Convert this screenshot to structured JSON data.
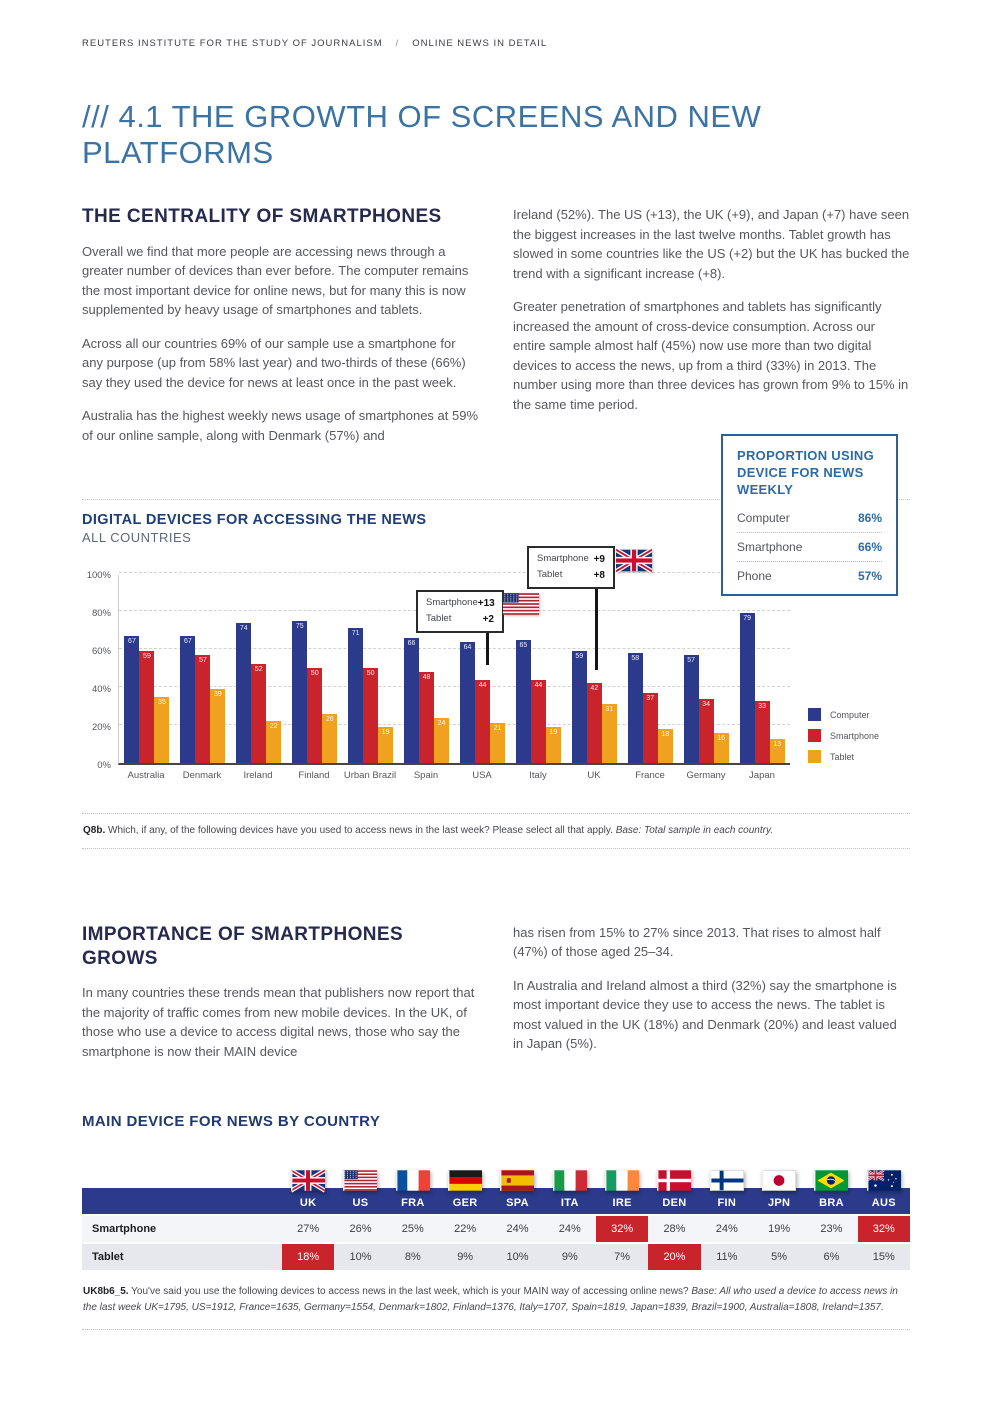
{
  "header": {
    "left": "REUTERS INSTITUTE FOR THE STUDY OF JOURNALISM",
    "separator": "/",
    "right": "ONLINE NEWS IN DETAIL"
  },
  "title": "/// 4.1 THE GROWTH OF SCREENS AND NEW PLATFORMS",
  "centrality": {
    "heading": "THE CENTRALITY OF SMARTPHONES",
    "left_paragraphs": [
      "Overall we find that more people are accessing news through a greater number of devices than ever before. The computer remains the most important device for online news, but for many this is now supplemented by heavy usage of smartphones and tablets.",
      "Across all our countries 69% of our sample use a smartphone for any purpose (up from 58% last year) and two-thirds of these (66%) say they used the device for news at least once in the past week.",
      "Australia has the highest weekly news usage of smartphones at 59% of our online sample, along with Denmark (57%) and"
    ],
    "right_paragraphs": [
      "Ireland (52%). The US (+13), the UK (+9), and Japan (+7) have seen the biggest increases in the last twelve months. Tablet growth has slowed in some countries like the US (+2) but the UK has bucked the trend with a significant increase (+8).",
      "Greater penetration of smartphones and tablets has significantly increased the amount of cross-device consumption. Across our entire sample almost half (45%) now use more than two digital devices to access the news, up from a third (33%) in 2013. The number using more than three devices has grown from 9% to 15% in the same time period."
    ]
  },
  "stat_box": {
    "title": "PROPORTION USING DEVICE FOR NEWS WEEKLY",
    "rows": [
      {
        "label": "Computer",
        "value": "86%"
      },
      {
        "label": "Smartphone",
        "value": "66%"
      },
      {
        "label": "Phone",
        "value": "57%"
      }
    ]
  },
  "chart_section": {
    "title": "DIGITAL DEVICES FOR ACCESSING THE NEWS",
    "subtitle": "ALL COUNTRIES",
    "footnote": {
      "prefix": "Q8b.",
      "text": " Which, if any, of the following devices have you used to access news in the last week? Please select all that apply. ",
      "base": "Base: Total sample in each country."
    }
  },
  "chart_data": {
    "type": "bar",
    "title": "Digital devices for accessing the news — all countries",
    "categories": [
      "Australia",
      "Denmark",
      "Ireland",
      "Finland",
      "Urban Brazil",
      "Spain",
      "USA",
      "Italy",
      "UK",
      "France",
      "Germany",
      "Japan"
    ],
    "series": [
      {
        "name": "Computer",
        "color": "#2b3a8a",
        "values": [
          67,
          67,
          74,
          75,
          71,
          66,
          64,
          65,
          59,
          58,
          57,
          79
        ]
      },
      {
        "name": "Smartphone",
        "color": "#c9242c",
        "values": [
          59,
          57,
          52,
          50,
          50,
          48,
          44,
          44,
          42,
          37,
          34,
          33
        ]
      },
      {
        "name": "Tablet",
        "color": "#efa11f",
        "values": [
          35,
          39,
          22,
          26,
          19,
          24,
          21,
          19,
          31,
          18,
          16,
          13
        ]
      }
    ],
    "ylabel": "",
    "xlabel": "",
    "ylim": [
      0,
      100
    ],
    "yticks": [
      "0%",
      "20%",
      "40%",
      "60%",
      "80%",
      "100%"
    ],
    "grid": "dashed horizontal",
    "legend_position": "right-bottom",
    "annotations": [
      {
        "country": "USA",
        "flag": "us",
        "rows": [
          {
            "label": "Smartphone",
            "value": "+13"
          },
          {
            "label": "Tablet",
            "value": "+2"
          }
        ]
      },
      {
        "country": "UK",
        "flag": "uk",
        "rows": [
          {
            "label": "Smartphone",
            "value": "+9"
          },
          {
            "label": "Tablet",
            "value": "+8"
          }
        ]
      }
    ]
  },
  "importance": {
    "heading": "IMPORTANCE OF SMARTPHONES GROWS",
    "left_paragraphs": [
      "In many countries these trends mean that publishers now report that the majority of traffic comes from new mobile devices. In the UK, of those who use a device to access digital news, those who say the smartphone is now their MAIN device"
    ],
    "right_paragraphs": [
      "has risen from 15% to 27% since 2013. That rises to almost half (47%) of those aged 25–34.",
      "In Australia and Ireland almost a third (32%) say the smartphone is most important device they use to access the news. The tablet is most valued in the UK (18%) and Denmark (20%) and least valued in Japan (5%)."
    ]
  },
  "main_device": {
    "heading": "MAIN DEVICE FOR NEWS BY COUNTRY",
    "columns": [
      {
        "code": "UK",
        "flag": "uk"
      },
      {
        "code": "US",
        "flag": "us"
      },
      {
        "code": "FRA",
        "flag": "fra"
      },
      {
        "code": "GER",
        "flag": "ger"
      },
      {
        "code": "SPA",
        "flag": "spa"
      },
      {
        "code": "ITA",
        "flag": "ita"
      },
      {
        "code": "IRE",
        "flag": "ire"
      },
      {
        "code": "DEN",
        "flag": "den"
      },
      {
        "code": "FIN",
        "flag": "fin"
      },
      {
        "code": "JPN",
        "flag": "jpn"
      },
      {
        "code": "BRA",
        "flag": "bra"
      },
      {
        "code": "AUS",
        "flag": "aus"
      }
    ],
    "rows": [
      {
        "label": "Smartphone",
        "values": [
          "27%",
          "26%",
          "25%",
          "22%",
          "24%",
          "24%",
          "32%",
          "28%",
          "24%",
          "19%",
          "23%",
          "32%"
        ],
        "highlights": [
          6,
          11
        ]
      },
      {
        "label": "Tablet",
        "values": [
          "18%",
          "10%",
          "8%",
          "9%",
          "10%",
          "9%",
          "7%",
          "20%",
          "11%",
          "5%",
          "6%",
          "15%"
        ],
        "highlights": [
          0,
          7
        ]
      }
    ],
    "footnote": {
      "prefix": "UK8b6_5.",
      "text": " You've said you use the following devices to access news in the last week, which is your MAIN way of accessing online news? ",
      "base": "Base: All who used a device to access news in the last week UK=1795, US=1912, France=1635, Germany=1554, Denmark=1802, Finland=1376, Italy=1707, Spain=1819, Japan=1839, Brazil=1900, Australia=1808, Ireland=1357."
    }
  },
  "colors": {
    "computer_bar": "#2b3a8a",
    "smartphone_bar": "#c9242c",
    "tablet_bar": "#efa11f",
    "title_blue": "#3a73a4",
    "heading_navy": "#262a4e",
    "chart_heading_navy": "#1d3e78",
    "stat_box_blue": "#2a6096",
    "table_header_navy": "#2b3a8a",
    "highlight_red": "#c9242c"
  }
}
